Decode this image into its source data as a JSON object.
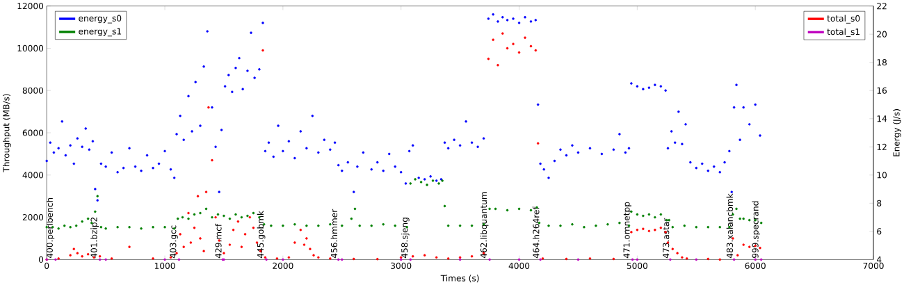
{
  "chart_data": {
    "type": "scatter",
    "xlabel": "Times (s)",
    "ylabel": "Throughput (MB/s)",
    "y2label": "Energy (J/s)",
    "xlim": [
      0,
      7000
    ],
    "xticks": [
      0,
      1000,
      2000,
      3000,
      4000,
      5000,
      6000,
      7000
    ],
    "ylim": [
      0,
      12000
    ],
    "yticks": [
      0,
      2000,
      4000,
      6000,
      8000,
      10000,
      12000
    ],
    "y2lim": [
      4,
      22
    ],
    "y2ticks": [
      4,
      6,
      8,
      10,
      12,
      14,
      16,
      18,
      20,
      22
    ],
    "marker": "circle",
    "legend": "top left",
    "series": [
      {
        "name": "energy_s0",
        "color": "#0000ff",
        "axis": "y2",
        "x": [
          0,
          30,
          60,
          100,
          130,
          160,
          200,
          230,
          260,
          300,
          330,
          360,
          390,
          410,
          430,
          460,
          500,
          550,
          600,
          650,
          700,
          750,
          800,
          850,
          900,
          950,
          1000,
          1050,
          1080,
          1100,
          1130,
          1160,
          1200,
          1230,
          1260,
          1300,
          1330,
          1360,
          1400,
          1430,
          1460,
          1480,
          1510,
          1540,
          1570,
          1600,
          1630,
          1660,
          1700,
          1730,
          1760,
          1800,
          1830,
          1850,
          1880,
          1920,
          1960,
          2000,
          2050,
          2100,
          2150,
          2200,
          2250,
          2300,
          2350,
          2400,
          2440,
          2470,
          2500,
          2550,
          2600,
          2630,
          2680,
          2750,
          2800,
          2850,
          2900,
          2950,
          3000,
          3040,
          3070,
          3100,
          3150,
          3200,
          3250,
          3300,
          3340,
          3370,
          3400,
          3450,
          3500,
          3550,
          3600,
          3650,
          3700,
          3740,
          3780,
          3820,
          3860,
          3900,
          3950,
          4000,
          4050,
          4100,
          4140,
          4160,
          4180,
          4210,
          4250,
          4300,
          4350,
          4400,
          4450,
          4500,
          4600,
          4700,
          4800,
          4850,
          4900,
          4930,
          4950,
          5000,
          5050,
          5100,
          5150,
          5200,
          5240,
          5260,
          5290,
          5320,
          5350,
          5380,
          5410,
          5450,
          5500,
          5550,
          5600,
          5650,
          5700,
          5740,
          5780,
          5800,
          5820,
          5840,
          5870,
          5900,
          5950,
          6000,
          6040
        ],
        "values": [
          11.0,
          12.3,
          11.6,
          11.9,
          13.8,
          11.4,
          12.1,
          10.8,
          12.6,
          12.0,
          13.3,
          11.8,
          12.4,
          9.0,
          8.2,
          10.8,
          10.6,
          11.6,
          10.2,
          10.5,
          11.9,
          10.6,
          10.3,
          11.4,
          10.5,
          10.8,
          11.7,
          10.4,
          9.8,
          12.9,
          14.2,
          12.5,
          15.6,
          13.1,
          16.6,
          13.5,
          17.7,
          20.2,
          14.8,
          12.0,
          8.8,
          13.2,
          16.3,
          17.1,
          15.9,
          17.6,
          18.3,
          16.1,
          17.4,
          20.1,
          16.9,
          17.5,
          20.8,
          11.7,
          12.3,
          11.3,
          13.5,
          11.7,
          12.4,
          11.2,
          13.1,
          11.9,
          14.2,
          11.6,
          12.5,
          11.8,
          12.3,
          10.7,
          10.3,
          10.9,
          8.8,
          10.6,
          11.6,
          10.4,
          10.9,
          10.3,
          11.5,
          10.6,
          10.2,
          9.4,
          11.7,
          12.1,
          9.8,
          9.7,
          9.9,
          9.6,
          9.7,
          12.3,
          11.9,
          12.5,
          12.1,
          13.8,
          12.3,
          12.0,
          12.6,
          21.1,
          21.4,
          20.9,
          21.2,
          21.0,
          21.1,
          20.8,
          21.2,
          20.9,
          21.0,
          15.0,
          10.8,
          10.4,
          9.8,
          11.0,
          11.8,
          11.4,
          12.1,
          11.6,
          11.9,
          11.5,
          11.8,
          12.9,
          11.6,
          11.9,
          16.5,
          16.3,
          16.1,
          16.2,
          16.4,
          16.3,
          16.0,
          11.9,
          13.1,
          12.3,
          14.5,
          12.2,
          13.6,
          10.9,
          10.5,
          10.8,
          10.3,
          10.6,
          10.2,
          10.9,
          11.7,
          8.8,
          14.8,
          16.4,
          12.5,
          14.8,
          13.6,
          15.0,
          12.8
        ]
      },
      {
        "name": "energy_s1",
        "color": "#008000",
        "axis": "y2",
        "x": [
          0,
          50,
          100,
          150,
          200,
          250,
          300,
          350,
          380,
          410,
          430,
          460,
          500,
          600,
          700,
          800,
          900,
          1000,
          1080,
          1110,
          1150,
          1200,
          1250,
          1300,
          1350,
          1400,
          1450,
          1500,
          1550,
          1600,
          1650,
          1700,
          1750,
          1800,
          1840,
          1900,
          2000,
          2100,
          2200,
          2300,
          2400,
          2500,
          2580,
          2610,
          2650,
          2750,
          2850,
          2950,
          3050,
          3080,
          3120,
          3170,
          3220,
          3270,
          3320,
          3350,
          3370,
          3400,
          3500,
          3600,
          3700,
          3750,
          3800,
          3900,
          4000,
          4100,
          4150,
          4170,
          4250,
          4350,
          4450,
          4550,
          4650,
          4750,
          4850,
          4930,
          4950,
          5000,
          5050,
          5100,
          5150,
          5200,
          5250,
          5270,
          5300,
          5400,
          5500,
          5600,
          5700,
          5780,
          5810,
          5840,
          5870,
          5900,
          5950,
          6000,
          6050
        ],
        "values": [
          6.3,
          6.3,
          6.2,
          6.4,
          6.3,
          6.4,
          6.7,
          6.9,
          6.6,
          7.4,
          8.5,
          6.3,
          6.2,
          6.3,
          6.3,
          6.2,
          6.3,
          6.3,
          6.2,
          6.9,
          7.0,
          6.9,
          7.2,
          7.3,
          7.6,
          7.0,
          7.2,
          7.1,
          6.9,
          7.2,
          7.0,
          7.1,
          7.3,
          7.0,
          6.5,
          6.4,
          6.4,
          6.5,
          6.4,
          6.4,
          6.5,
          6.4,
          6.9,
          7.6,
          6.4,
          6.4,
          6.5,
          6.4,
          6.3,
          9.4,
          9.7,
          9.5,
          9.3,
          9.6,
          9.4,
          9.6,
          7.8,
          6.4,
          6.4,
          6.4,
          6.5,
          7.6,
          7.6,
          7.5,
          7.6,
          7.5,
          7.7,
          6.6,
          6.4,
          6.4,
          6.5,
          6.3,
          6.4,
          6.5,
          6.6,
          6.4,
          7.4,
          7.2,
          7.1,
          7.2,
          7.0,
          7.2,
          6.8,
          6.8,
          6.3,
          6.4,
          6.3,
          6.3,
          6.3,
          6.3,
          7.2,
          7.6,
          6.9,
          6.9,
          6.8,
          6.8,
          6.6
        ]
      },
      {
        "name": "total_s0",
        "color": "#ff0000",
        "x": [
          0,
          100,
          200,
          230,
          260,
          300,
          350,
          400,
          450,
          550,
          700,
          900,
          1050,
          1100,
          1130,
          1160,
          1200,
          1220,
          1250,
          1280,
          1300,
          1330,
          1350,
          1370,
          1400,
          1430,
          1460,
          1500,
          1550,
          1580,
          1620,
          1650,
          1680,
          1720,
          1750,
          1780,
          1810,
          1830,
          1850,
          1950,
          2050,
          2100,
          2150,
          2180,
          2200,
          2230,
          2260,
          2300,
          2400,
          2600,
          2800,
          3000,
          3100,
          3200,
          3300,
          3400,
          3500,
          3600,
          3700,
          3740,
          3780,
          3820,
          3860,
          3900,
          3950,
          4000,
          4050,
          4100,
          4140,
          4160,
          4200,
          4400,
          4600,
          4800,
          4950,
          5000,
          5050,
          5100,
          5150,
          5200,
          5240,
          5260,
          5300,
          5340,
          5380,
          5420,
          5600,
          5700,
          5810,
          5850,
          5900,
          5950,
          6000,
          6040
        ],
        "values": [
          0,
          50,
          200,
          500,
          300,
          150,
          250,
          100,
          150,
          50,
          600,
          50,
          100,
          300,
          1200,
          600,
          2200,
          800,
          1500,
          3000,
          1000,
          400,
          3200,
          7200,
          4700,
          2000,
          900,
          300,
          700,
          1400,
          1800,
          600,
          1200,
          2000,
          1500,
          800,
          400,
          9900,
          100,
          50,
          100,
          800,
          1400,
          700,
          1000,
          500,
          200,
          100,
          50,
          30,
          20,
          100,
          150,
          200,
          100,
          50,
          100,
          150,
          300,
          9500,
          10400,
          9200,
          10700,
          10000,
          10200,
          9800,
          10500,
          10100,
          9900,
          5500,
          50,
          30,
          50,
          30,
          1300,
          1400,
          1450,
          1350,
          1400,
          1500,
          1300,
          800,
          500,
          300,
          100,
          50,
          30,
          0,
          1000,
          200,
          700,
          600,
          650,
          550
        ]
      },
      {
        "name": "total_s1",
        "color": "#bf00bf",
        "x": [
          0,
          75,
          450,
          500,
          1000,
          1120,
          1490,
          1500,
          1860,
          2000,
          2470,
          2500,
          3000,
          3080,
          3500,
          3750,
          4000,
          4180,
          4500,
          4960,
          5000,
          5280,
          5500,
          5820,
          6000,
          6050
        ],
        "values": [
          0,
          0,
          0,
          0,
          0,
          0,
          0,
          0,
          0,
          0,
          0,
          0,
          0,
          0,
          0,
          0,
          0,
          0,
          0,
          0,
          0,
          0,
          0,
          0,
          0,
          0
        ]
      }
    ],
    "annotations": [
      {
        "text": "400.perlbench",
        "x": 75,
        "y": 0
      },
      {
        "text": "401.bzip2",
        "x": 450,
        "y": 0
      },
      {
        "text": "403.gcc",
        "x": 1120,
        "y": 0
      },
      {
        "text": "429.mcf",
        "x": 1490,
        "y": 0
      },
      {
        "text": "445.gobmk",
        "x": 1860,
        "y": 0
      },
      {
        "text": "456.hmmer",
        "x": 2470,
        "y": 0
      },
      {
        "text": "458.sjeng",
        "x": 3080,
        "y": 0
      },
      {
        "text": "462.libquantum",
        "x": 3750,
        "y": 0
      },
      {
        "text": "464.h264ref",
        "x": 4180,
        "y": 0
      },
      {
        "text": "471.omnetpp",
        "x": 4960,
        "y": 0
      },
      {
        "text": "473.astar",
        "x": 5280,
        "y": 0
      },
      {
        "text": "483.xalancbmk",
        "x": 5820,
        "y": 0
      },
      {
        "text": "999.specrand",
        "x": 6050,
        "y": 0
      }
    ]
  }
}
